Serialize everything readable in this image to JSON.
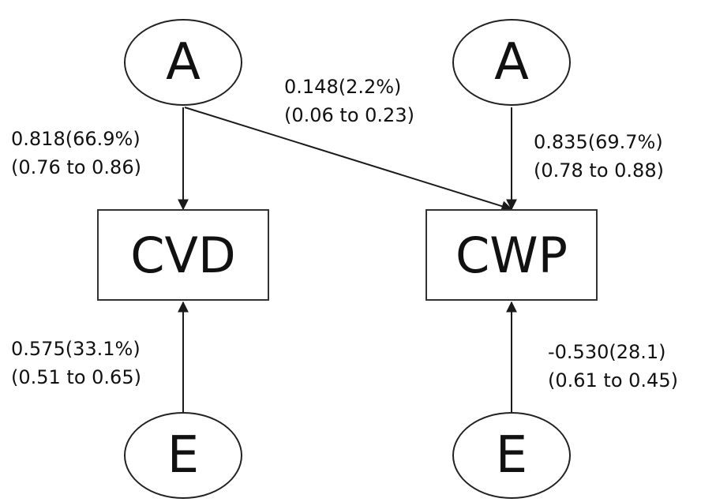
{
  "nodes": {
    "a_left": "A",
    "a_right": "A",
    "cvd": "CVD",
    "cwp": "CWP",
    "e_left": "E",
    "e_right": "E"
  },
  "paths": {
    "a_left_to_cvd": {
      "estimate": "0.818(66.9%)",
      "ci": "(0.76 to 0.86)"
    },
    "a_left_to_cwp": {
      "estimate": "0.148(2.2%)",
      "ci": "(0.06 to 0.23)"
    },
    "a_right_to_cwp": {
      "estimate": "0.835(69.7%)",
      "ci": "(0.78 to 0.88)"
    },
    "e_left_to_cvd": {
      "estimate": "0.575(33.1%)",
      "ci": "(0.51 to 0.65)"
    },
    "e_right_to_cwp": {
      "estimate": "-0.530(28.1)",
      "ci": "(0.61 to 0.45)"
    }
  },
  "colors": {
    "line": "#1a1a1a",
    "border": "#222222"
  }
}
